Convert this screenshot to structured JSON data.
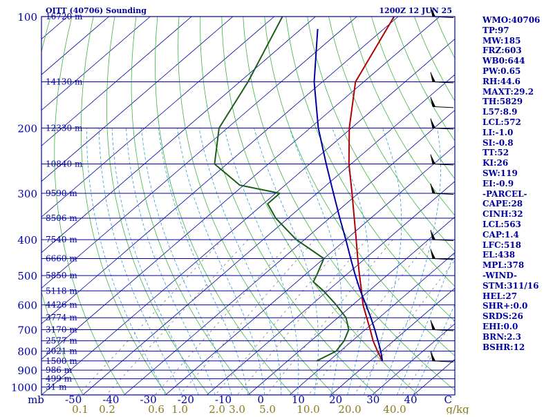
{
  "header": {
    "station": "OITT (40706) Sounding",
    "time": "1200Z 12 JUN 25"
  },
  "chart_data": {
    "type": "line",
    "title": "OITT (40706) Sounding",
    "subtitle": "1200Z 12 JUN 25",
    "pressure_levels": [
      100,
      200,
      300,
      400,
      500,
      600,
      700,
      800,
      900,
      1000
    ],
    "height_labels": [
      {
        "p": 100,
        "label": "16720 m"
      },
      {
        "p": 150,
        "label": "14130 m"
      },
      {
        "p": 200,
        "label": "12330 m"
      },
      {
        "p": 250,
        "label": "10840 m"
      },
      {
        "p": 300,
        "label": "9590 m"
      },
      {
        "p": 350,
        "label": "8506 m"
      },
      {
        "p": 400,
        "label": "7540 m"
      },
      {
        "p": 450,
        "label": "6660 m"
      },
      {
        "p": 500,
        "label": "5850 m"
      },
      {
        "p": 550,
        "label": "5118 m"
      },
      {
        "p": 600,
        "label": "4426 m"
      },
      {
        "p": 650,
        "label": "3774 m"
      },
      {
        "p": 700,
        "label": "3170 m"
      },
      {
        "p": 750,
        "label": "2577 m"
      },
      {
        "p": 800,
        "label": "2021 m"
      },
      {
        "p": 850,
        "label": "1500 m"
      },
      {
        "p": 900,
        "label": "986 m"
      },
      {
        "p": 950,
        "label": "499 m"
      },
      {
        "p": 1000,
        "label": "31 m"
      }
    ],
    "temp_axis_labels": [
      "mb",
      "-50",
      "-40",
      "-30",
      "-20",
      "-10",
      "0",
      "10",
      "20",
      "30",
      "40",
      "C"
    ],
    "mixing_ratio_labels": [
      "0.1",
      "0.2",
      "0.6",
      "1.0",
      "2.0",
      "3.0",
      "5.0",
      "10.0",
      "20.0",
      "40.0",
      "g/kg"
    ],
    "xlim": [
      -50,
      50
    ],
    "ylim": [
      100,
      1050
    ],
    "x_unit": "C",
    "y_unit": "mb",
    "mixing_ratio_values": [
      0.1,
      0.2,
      0.6,
      1,
      2,
      3,
      5,
      10,
      20,
      40
    ],
    "series": [
      {
        "color": "#b00000",
        "points": [
          [
            851,
            23.0
          ],
          [
            800,
            19.0
          ],
          [
            750,
            15.0
          ],
          [
            700,
            11.2
          ],
          [
            650,
            7.0
          ],
          [
            600,
            2.5
          ],
          [
            550,
            -1.8
          ],
          [
            500,
            -6.6
          ],
          [
            450,
            -11.8
          ],
          [
            400,
            -17.5
          ],
          [
            350,
            -24.0
          ],
          [
            300,
            -31.5
          ],
          [
            250,
            -40.5
          ],
          [
            200,
            -50.5
          ],
          [
            150,
            -62.0
          ],
          [
            100,
            -71.0
          ]
        ]
      },
      {
        "color": "#1a5e1a",
        "points": [
          [
            851,
            7.0
          ],
          [
            800,
            9.0
          ],
          [
            750,
            8.0
          ],
          [
            700,
            6.0
          ],
          [
            650,
            2.0
          ],
          [
            600,
            -4.0
          ],
          [
            550,
            -11.0
          ],
          [
            520,
            -16.0
          ],
          [
            500,
            -17.0
          ],
          [
            450,
            -20.0
          ],
          [
            420,
            -27.0
          ],
          [
            400,
            -32.0
          ],
          [
            350,
            -43.0
          ],
          [
            320,
            -49.0
          ],
          [
            300,
            -49.0
          ],
          [
            285,
            -61.0
          ],
          [
            250,
            -73.0
          ],
          [
            200,
            -82.0
          ],
          [
            150,
            -88.0
          ],
          [
            100,
            -98.0
          ]
        ]
      },
      {
        "color": "#0000a0",
        "points": [
          [
            851,
            23.0
          ],
          [
            800,
            19.8
          ],
          [
            750,
            16.2
          ],
          [
            700,
            12.3
          ],
          [
            650,
            8.0
          ],
          [
            600,
            3.2
          ],
          [
            550,
            -2.1
          ],
          [
            500,
            -7.6
          ],
          [
            450,
            -13.5
          ],
          [
            400,
            -20.0
          ],
          [
            350,
            -27.5
          ],
          [
            300,
            -36.0
          ],
          [
            250,
            -46.0
          ],
          [
            200,
            -58.0
          ],
          [
            150,
            -72.0
          ],
          [
            108,
            -86.0
          ]
        ]
      }
    ],
    "winds": [
      {
        "p": 100
      },
      {
        "p": 150
      },
      {
        "p": 175
      },
      {
        "p": 200
      },
      {
        "p": 250
      },
      {
        "p": 300
      },
      {
        "p": 400
      },
      {
        "p": 450
      },
      {
        "p": 700
      },
      {
        "p": 850
      }
    ]
  },
  "indices": [
    "WMO:40706",
    "TP:97",
    "MW:185",
    "FRZ:603",
    "WB0:644",
    "PW:0.65",
    "RH:44.6",
    "MAXT:29.2",
    "TH:5829",
    "L57:8.9",
    "LCL:572",
    "LI:-1.0",
    "SI:-0.8",
    "TT:52",
    "KI:26",
    "SW:119",
    "EI:-0.9",
    "-PARCEL-",
    "CAPE:28",
    "CINH:32",
    "LCL:563",
    "CAP:1.4",
    "LFC:518",
    "EL:438",
    "MPL:378",
    "-WIND-",
    "STM:311/16",
    "HEL:27",
    "SHR+:0.0",
    "SRDS:26",
    "EHI:0.0",
    "BRN:2.3",
    "BSHR:12"
  ],
  "colors": {
    "isobar": "#0000a0",
    "isotherm": "#0000a0",
    "dry_adiabat": "#3cb43c",
    "moist_adiabat": "#2a9bd8",
    "mixing_ratio": "#7a7a7a",
    "frame": "#0000a0",
    "mixing_label": "#8a7a1a"
  }
}
